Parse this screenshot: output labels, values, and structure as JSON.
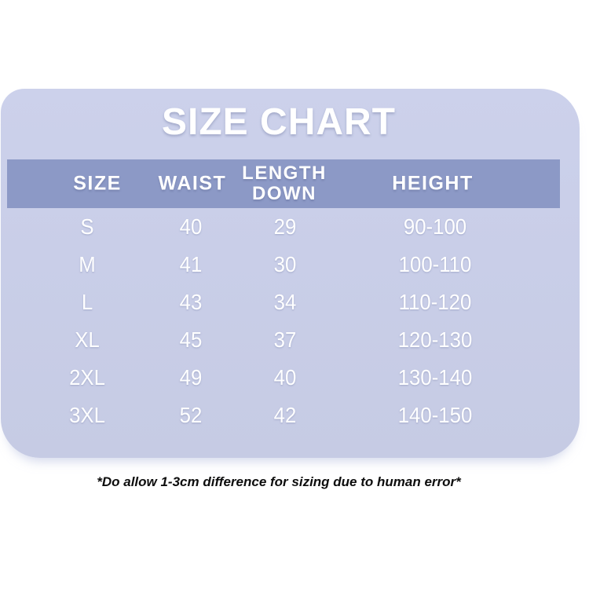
{
  "title": "SIZE CHART",
  "note": "*Do allow 1-3cm difference for sizing due to human error*",
  "colors": {
    "page_background": "#ffffff",
    "panel_background": "#c9cde8",
    "header_band": "#8c99c6",
    "table_text": "#ffffff",
    "note_text": "#0d0d0d"
  },
  "table": {
    "headers": [
      "SIZE",
      "WAIST",
      "LENGTH DOWN",
      "HEIGHT"
    ],
    "rows": [
      {
        "size": "S",
        "waist": "40",
        "length_down": "29",
        "height": "90-100"
      },
      {
        "size": "M",
        "waist": "41",
        "length_down": "30",
        "height": "100-110"
      },
      {
        "size": "L",
        "waist": "43",
        "length_down": "34",
        "height": "110-120"
      },
      {
        "size": "XL",
        "waist": "45",
        "length_down": "37",
        "height": "120-130"
      },
      {
        "size": "2XL",
        "waist": "49",
        "length_down": "40",
        "height": "130-140"
      },
      {
        "size": "3XL",
        "waist": "52",
        "length_down": "42",
        "height": "140-150"
      }
    ]
  },
  "chart_data": {
    "type": "table",
    "title": "SIZE CHART",
    "columns": [
      "SIZE",
      "WAIST",
      "LENGTH DOWN",
      "HEIGHT"
    ],
    "rows": [
      [
        "S",
        40,
        29,
        "90-100"
      ],
      [
        "M",
        41,
        30,
        "100-110"
      ],
      [
        "L",
        43,
        34,
        "110-120"
      ],
      [
        "XL",
        45,
        37,
        "120-130"
      ],
      [
        "2XL",
        49,
        40,
        "130-140"
      ],
      [
        "3XL",
        52,
        42,
        "140-150"
      ]
    ],
    "footnote": "*Do allow 1-3cm difference for sizing due to human error*"
  }
}
